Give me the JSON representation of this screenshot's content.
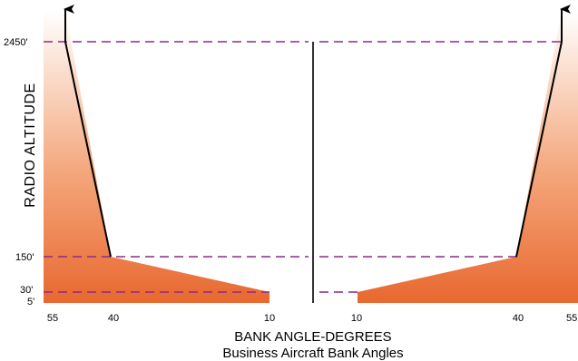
{
  "chart_data": {
    "type": "area",
    "xlabel": "BANK ANGLE-DEGREES",
    "subtitle": "Business Aircraft Bank Angles",
    "ylabel": "RADIO ALTITUDE",
    "y_tick_labels": [
      "2450'",
      "150'",
      "30'",
      "5'"
    ],
    "x_tick_labels_left": [
      "55",
      "40",
      "10"
    ],
    "x_tick_labels_right": [
      "10",
      "40",
      "55"
    ],
    "x_scale": "mirrored, bank angle decreasing toward center line",
    "y_scale": "non-linear",
    "series": [
      {
        "side": "left",
        "x": [
          55,
          40,
          10,
          10
        ],
        "y": [
          2450,
          150,
          30,
          5
        ]
      },
      {
        "side": "right",
        "x": [
          10,
          10,
          40,
          55
        ],
        "y": [
          5,
          30,
          150,
          2450
        ]
      }
    ],
    "reference_lines": [
      {
        "style": "dashed",
        "color": "#8b2a8b",
        "y": 2450
      },
      {
        "style": "dashed",
        "color": "#8b2a8b",
        "y": 150
      },
      {
        "style": "dashed",
        "color": "#8b2a8b",
        "y": 30
      }
    ],
    "colors": {
      "fill_top": "#ffffff",
      "fill_bottom": "#e8682f",
      "dash": "#8b2a8b",
      "axis": "#000000"
    }
  }
}
